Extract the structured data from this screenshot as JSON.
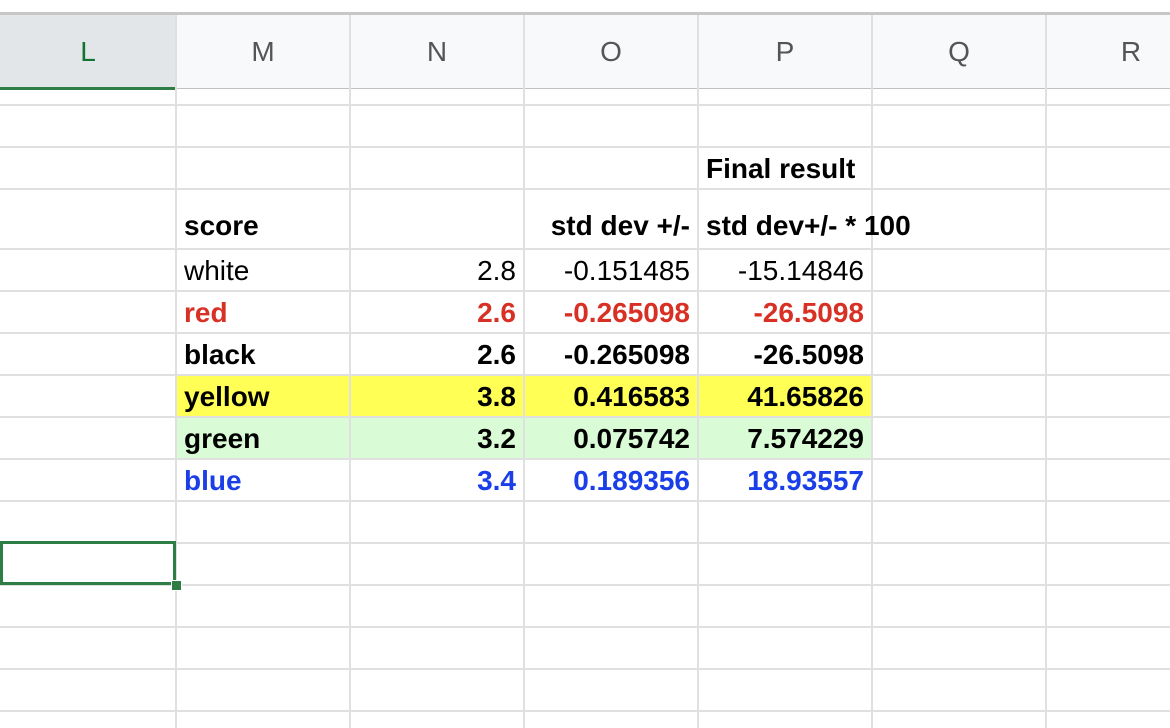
{
  "columns": {
    "L": "L",
    "M": "M",
    "N": "N",
    "O": "O",
    "P": "P",
    "Q": "Q",
    "R": "R",
    "selected": "L"
  },
  "sheet": {
    "final_result_label": "Final result",
    "headers": {
      "score": "score",
      "std_dev": "std dev +/-",
      "std_dev_100": "std dev+/- * 100"
    },
    "rows": [
      {
        "name": "white",
        "score": "2.8",
        "std_dev": "-0.151485",
        "std_dev_100": "-15.14846",
        "text_color": "#000000",
        "fill": "#ffffff",
        "bold": false
      },
      {
        "name": "red",
        "score": "2.6",
        "std_dev": "-0.265098",
        "std_dev_100": "-26.5098",
        "text_color": "#d93025",
        "fill": "#ffffff",
        "bold": true
      },
      {
        "name": "black",
        "score": "2.6",
        "std_dev": "-0.265098",
        "std_dev_100": "-26.5098",
        "text_color": "#000000",
        "fill": "#ffffff",
        "bold": true
      },
      {
        "name": "yellow",
        "score": "3.8",
        "std_dev": "0.416583",
        "std_dev_100": "41.65826",
        "text_color": "#000000",
        "fill": "#ffff55",
        "bold": true
      },
      {
        "name": "green",
        "score": "3.2",
        "std_dev": "0.075742",
        "std_dev_100": "7.574229",
        "text_color": "#000000",
        "fill": "#d9fbd6",
        "bold": true
      },
      {
        "name": "blue",
        "score": "3.4",
        "std_dev": "0.189356",
        "std_dev_100": "18.93557",
        "text_color": "#1a3ee8",
        "fill": "#ffffff",
        "bold": true
      }
    ]
  }
}
